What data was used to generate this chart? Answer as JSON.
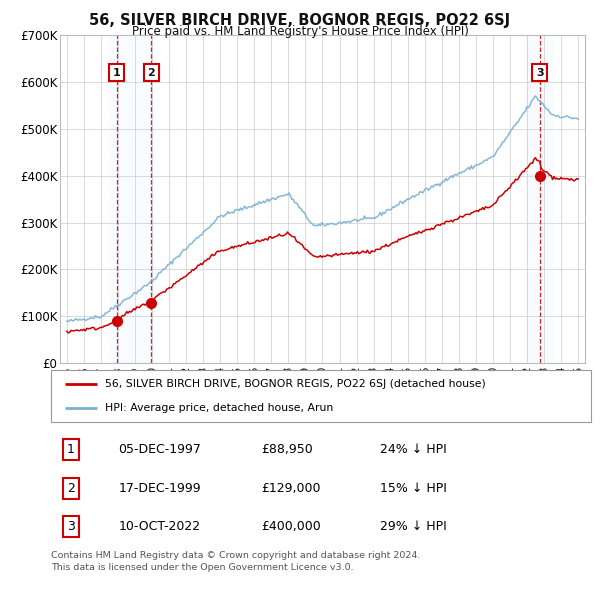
{
  "title": "56, SILVER BIRCH DRIVE, BOGNOR REGIS, PO22 6SJ",
  "subtitle": "Price paid vs. HM Land Registry's House Price Index (HPI)",
  "legend_line1": "56, SILVER BIRCH DRIVE, BOGNOR REGIS, PO22 6SJ (detached house)",
  "legend_line2": "HPI: Average price, detached house, Arun",
  "footer1": "Contains HM Land Registry data © Crown copyright and database right 2024.",
  "footer2": "This data is licensed under the Open Government Licence v3.0.",
  "ylim": [
    0,
    700000
  ],
  "yticks": [
    0,
    100000,
    200000,
    300000,
    400000,
    500000,
    600000,
    700000
  ],
  "ytick_labels": [
    "£0",
    "£100K",
    "£200K",
    "£300K",
    "£400K",
    "£500K",
    "£600K",
    "£700K"
  ],
  "sale_dates_text": [
    "05-DEC-1997",
    "17-DEC-1999",
    "10-OCT-2022"
  ],
  "sale_prices": [
    88950,
    129000,
    400000
  ],
  "sale_years": [
    1997.917,
    1999.958,
    2022.75
  ],
  "sale_labels": [
    "1",
    "2",
    "3"
  ],
  "sale_hpi_pct": [
    "24% ↓ HPI",
    "15% ↓ HPI",
    "29% ↓ HPI"
  ],
  "red_color": "#cc0000",
  "blue_color": "#7ab0d4",
  "shade_color": "#ddeeff",
  "box_color": "#cc0000",
  "background_color": "#ffffff",
  "grid_color": "#cccccc",
  "xlim": [
    1994.6,
    2025.4
  ],
  "xticks": [
    1995,
    1996,
    1997,
    1998,
    1999,
    2000,
    2001,
    2002,
    2003,
    2004,
    2005,
    2006,
    2007,
    2008,
    2009,
    2010,
    2011,
    2012,
    2013,
    2014,
    2015,
    2016,
    2017,
    2018,
    2019,
    2020,
    2021,
    2022,
    2023,
    2024,
    2025
  ]
}
